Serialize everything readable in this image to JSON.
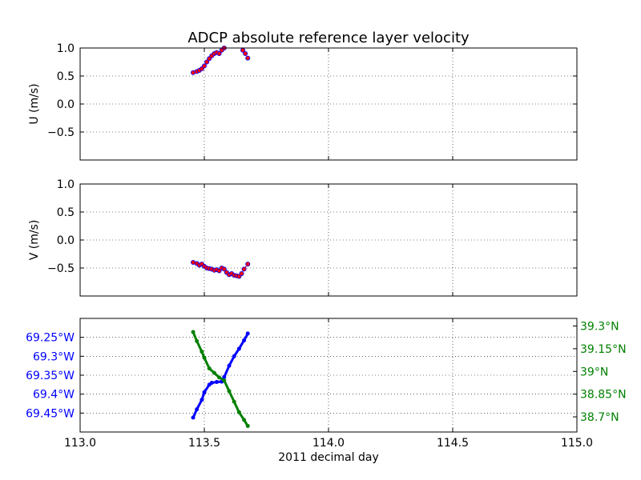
{
  "chart_data": [
    {
      "type": "line",
      "title": "ADCP absolute reference layer velocity",
      "ylabel": "U (m/s)",
      "xlim": [
        113.0,
        115.0
      ],
      "ylim": [
        -1.0,
        1.0
      ],
      "yticks": [
        1.0,
        0.5,
        0.0,
        -0.5
      ],
      "ytick_labels": [
        "1.0",
        "0.5",
        "0.0",
        "−0.5"
      ],
      "grid": true,
      "series": [
        {
          "color": "#ff0000",
          "marker_color": "#0000ff",
          "x": [
            113.455,
            113.47,
            113.48,
            113.49,
            113.5,
            113.51,
            113.52,
            113.53,
            113.54,
            113.55,
            113.56,
            113.57,
            113.58
          ],
          "values": [
            0.56,
            0.58,
            0.6,
            0.63,
            0.68,
            0.75,
            0.81,
            0.86,
            0.9,
            0.92,
            0.9,
            0.96,
            1.0
          ]
        },
        {
          "color": "#ff0000",
          "marker_color": "#0000ff",
          "x": [
            113.655,
            113.665,
            113.675
          ],
          "values": [
            0.96,
            0.9,
            0.82
          ]
        }
      ]
    },
    {
      "type": "line",
      "ylabel": "V (m/s)",
      "xlim": [
        113.0,
        115.0
      ],
      "ylim": [
        -1.0,
        1.0
      ],
      "yticks": [
        1.0,
        0.5,
        0.0,
        -0.5
      ],
      "ytick_labels": [
        "1.0",
        "0.5",
        "0.0",
        "−0.5"
      ],
      "grid": true,
      "series": [
        {
          "color": "#ff0000",
          "marker_color": "#0000ff",
          "x": [
            113.455,
            113.47,
            113.48,
            113.49,
            113.5,
            113.51,
            113.52,
            113.53,
            113.54,
            113.55,
            113.56,
            113.57,
            113.58,
            113.59,
            113.6,
            113.61,
            113.62,
            113.63,
            113.64,
            113.65,
            113.66,
            113.675
          ],
          "values": [
            -0.4,
            -0.42,
            -0.45,
            -0.43,
            -0.47,
            -0.5,
            -0.51,
            -0.52,
            -0.54,
            -0.53,
            -0.55,
            -0.5,
            -0.52,
            -0.58,
            -0.62,
            -0.6,
            -0.63,
            -0.64,
            -0.65,
            -0.6,
            -0.52,
            -0.43
          ]
        }
      ]
    },
    {
      "type": "line",
      "xlabel": "2011 decimal day",
      "xlim": [
        113.0,
        115.0
      ],
      "xticks": [
        113.0,
        113.5,
        114.0,
        114.5,
        115.0
      ],
      "xtick_labels": [
        "113.0",
        "113.5",
        "114.0",
        "114.5",
        "115.0"
      ],
      "grid": true,
      "left_axis": {
        "color": "#0000ff",
        "ylim": [
          -69.5,
          -69.2
        ],
        "yticks": [
          -69.25,
          -69.3,
          -69.35,
          -69.4,
          -69.45
        ],
        "ytick_labels": [
          "69.25°W",
          "69.3°W",
          "69.35°W",
          "69.4°W",
          "69.45°W"
        ]
      },
      "right_axis": {
        "color": "#008000",
        "ylim": [
          38.6,
          39.35
        ],
        "yticks": [
          39.3,
          39.15,
          39.0,
          38.85,
          38.7
        ],
        "ytick_labels": [
          "39.3°N",
          "39.15°N",
          "39°N",
          "38.85°N",
          "38.7°N"
        ]
      },
      "series": [
        {
          "axis": "left",
          "color": "#0000ff",
          "x": [
            113.455,
            113.47,
            113.49,
            113.5,
            113.52,
            113.53,
            113.55,
            113.57,
            113.58,
            113.6,
            113.62,
            113.64,
            113.66,
            113.675
          ],
          "values": [
            -69.462,
            -69.44,
            -69.415,
            -69.395,
            -69.375,
            -69.37,
            -69.368,
            -69.367,
            -69.355,
            -69.325,
            -69.3,
            -69.28,
            -69.258,
            -69.24
          ]
        },
        {
          "axis": "right",
          "color": "#008000",
          "x": [
            113.455,
            113.47,
            113.49,
            113.5,
            113.52,
            113.54,
            113.56,
            113.58,
            113.6,
            113.62,
            113.64,
            113.66,
            113.675
          ],
          "values": [
            39.26,
            39.2,
            39.13,
            39.09,
            39.02,
            38.99,
            38.96,
            38.94,
            38.87,
            38.8,
            38.73,
            38.68,
            38.64
          ]
        }
      ]
    }
  ]
}
